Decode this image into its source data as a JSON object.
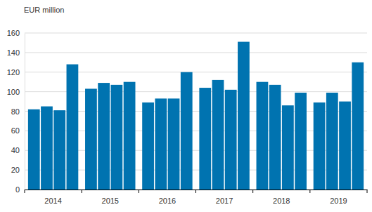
{
  "chart_data": {
    "type": "bar",
    "ylabel": "EUR million",
    "categories": [
      "2014",
      "2015",
      "2016",
      "2017",
      "2018",
      "2019"
    ],
    "series": [
      {
        "color": "#0073b0",
        "values": [
          82,
          103,
          89,
          104,
          110,
          89
        ]
      },
      {
        "color": "#0073b0",
        "values": [
          85,
          109,
          93,
          112,
          107,
          99
        ]
      },
      {
        "color": "#0073b0",
        "values": [
          81,
          107,
          93,
          102,
          86,
          90
        ]
      },
      {
        "color": "#0073b0",
        "values": [
          128,
          110,
          120,
          151,
          99,
          130
        ]
      }
    ],
    "ylim": [
      0,
      160
    ],
    "yticks": [
      0,
      20,
      40,
      60,
      80,
      100,
      120,
      140,
      160
    ],
    "grid": true
  }
}
